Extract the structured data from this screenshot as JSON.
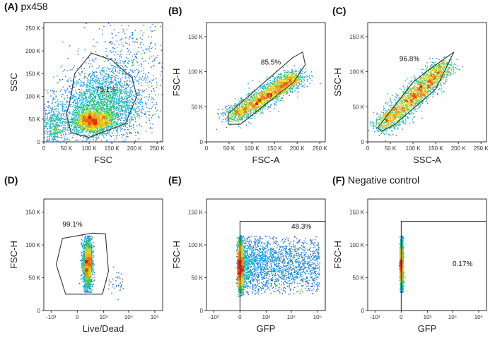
{
  "figure": {
    "panels": [
      {
        "id": "A",
        "letter": "(A)",
        "subtitle": "px458",
        "xlabel": "FSC",
        "ylabel": "SSC",
        "xscale": "linear",
        "yscale": "linear",
        "xlim": [
          0,
          262144
        ],
        "ylim": [
          0,
          262144
        ],
        "xticks": [
          {
            "v": 0,
            "t": "0"
          },
          {
            "v": 50000,
            "t": "50 K"
          },
          {
            "v": 100000,
            "t": "100 K"
          },
          {
            "v": 150000,
            "t": "150 K"
          },
          {
            "v": 200000,
            "t": "200 K"
          },
          {
            "v": 250000,
            "t": "250 K"
          }
        ],
        "yticks": [
          {
            "v": 0,
            "t": "0"
          },
          {
            "v": 50000,
            "t": "50 K"
          },
          {
            "v": 100000,
            "t": "100 K"
          },
          {
            "v": 150000,
            "t": "150 K"
          },
          {
            "v": 200000,
            "t": "200 K"
          },
          {
            "v": 250000,
            "t": "250 K"
          }
        ],
        "gate": {
          "type": "polygon",
          "vertices": [
            [
              50000,
              60000
            ],
            [
              60000,
              100000
            ],
            [
              68000,
              150000
            ],
            [
              105000,
              195000
            ],
            [
              150000,
              180000
            ],
            [
              195000,
              140000
            ],
            [
              205000,
              100000
            ],
            [
              180000,
              40000
            ],
            [
              100000,
              10000
            ],
            [
              60000,
              20000
            ]
          ]
        },
        "gate_label": "75.1%",
        "gate_label_pos": [
          115000,
          110000
        ],
        "populations": [
          {
            "cx": 105000,
            "cy": 45000,
            "sx": 24000,
            "sy": 14000,
            "n": 1700
          },
          {
            "cx": 130000,
            "cy": 85000,
            "sx": 45000,
            "sy": 38000,
            "n": 2400
          },
          {
            "cx": 22000,
            "cy": 35000,
            "sx": 14000,
            "sy": 28000,
            "n": 500
          },
          {
            "cx": 190000,
            "cy": 170000,
            "sx": 45000,
            "sy": 55000,
            "n": 500
          }
        ]
      },
      {
        "id": "B",
        "letter": "(B)",
        "subtitle": "",
        "xlabel": "FSC-A",
        "ylabel": "FSC-H",
        "xscale": "linear",
        "yscale": "linear",
        "xlim": [
          0,
          262144
        ],
        "ylim": [
          0,
          170000
        ],
        "xticks": [
          {
            "v": 0,
            "t": "0"
          },
          {
            "v": 50000,
            "t": "50 K"
          },
          {
            "v": 100000,
            "t": "100 K"
          },
          {
            "v": 150000,
            "t": "150 K"
          },
          {
            "v": 200000,
            "t": "200 K"
          },
          {
            "v": 250000,
            "t": "250 K"
          }
        ],
        "yticks": [
          {
            "v": 0,
            "t": "0"
          },
          {
            "v": 50000,
            "t": "50 K"
          },
          {
            "v": 100000,
            "t": "100 K"
          },
          {
            "v": 150000,
            "t": "150 K"
          }
        ],
        "gate": {
          "type": "polygon",
          "vertices": [
            [
              48000,
              40000
            ],
            [
              190000,
              120000
            ],
            [
              212000,
              128000
            ],
            [
              218000,
              110000
            ],
            [
              192000,
              85000
            ],
            [
              75000,
              25000
            ],
            [
              48000,
              25000
            ]
          ]
        },
        "gate_label": "85.5%",
        "gate_label_pos": [
          120000,
          110000
        ],
        "populations": [
          {
            "diag": true,
            "x0": 55000,
            "y0": 35000,
            "x1": 200000,
            "y1": 95000,
            "spread": 6000,
            "n": 2400
          }
        ]
      },
      {
        "id": "C",
        "letter": "(C)",
        "subtitle": "",
        "xlabel": "SSC-A",
        "ylabel": "SSC-H",
        "xscale": "linear",
        "yscale": "linear",
        "xlim": [
          0,
          262144
        ],
        "ylim": [
          0,
          170000
        ],
        "xticks": [
          {
            "v": 0,
            "t": "0"
          },
          {
            "v": 50000,
            "t": "50 K"
          },
          {
            "v": 100000,
            "t": "100 K"
          },
          {
            "v": 150000,
            "t": "150 K"
          },
          {
            "v": 200000,
            "t": "200 K"
          },
          {
            "v": 250000,
            "t": "250 K"
          }
        ],
        "yticks": [
          {
            "v": 0,
            "t": "0"
          },
          {
            "v": 50000,
            "t": "50 K"
          },
          {
            "v": 100000,
            "t": "100 K"
          },
          {
            "v": 150000,
            "t": "150 K"
          }
        ],
        "gate": {
          "type": "polygon",
          "vertices": [
            [
              22000,
              20000
            ],
            [
              100000,
              85000
            ],
            [
              140000,
              105000
            ],
            [
              190000,
              128000
            ],
            [
              150000,
              75000
            ],
            [
              60000,
              25000
            ],
            [
              30000,
              15000
            ]
          ]
        },
        "gate_label": "96.8%",
        "gate_label_pos": [
          70000,
          115000
        ],
        "populations": [
          {
            "diag": true,
            "x0": 30000,
            "y0": 20000,
            "x1": 170000,
            "y1": 110000,
            "spread": 6000,
            "n": 2300
          }
        ]
      },
      {
        "id": "D",
        "letter": "(D)",
        "subtitle": "",
        "xlabel": "Live/Dead",
        "ylabel": "FSC-H",
        "xscale": "biex",
        "yscale": "linear",
        "xlim": [
          -2000,
          200000
        ],
        "ylim": [
          0,
          170000
        ],
        "xticks": [
          {
            "v": -1000,
            "t": "-10³"
          },
          {
            "v": 0,
            "t": "0"
          },
          {
            "v": 1000,
            "t": "10³"
          },
          {
            "v": 10000,
            "t": "10⁴"
          },
          {
            "v": 100000,
            "t": "10⁵"
          }
        ],
        "yticks": [
          {
            "v": 0,
            "t": "0"
          },
          {
            "v": 50000,
            "t": "50 K"
          },
          {
            "v": 100000,
            "t": "100 K"
          },
          {
            "v": 150000,
            "t": "150 K"
          }
        ],
        "gate": {
          "type": "polygon",
          "vertices": [
            [
              -300,
              110000
            ],
            [
              300,
              118000
            ],
            [
              1200,
              117000
            ],
            [
              1600,
              60000
            ],
            [
              900,
              25000
            ],
            [
              -200,
              25000
            ],
            [
              -600,
              70000
            ]
          ]
        },
        "gate_label": "99.1%",
        "gate_label_pos": [
          -300,
          128000
        ],
        "populations": [
          {
            "biexcol": true,
            "cx": 150,
            "sxw": 0.02,
            "ylo": 28000,
            "yhi": 115000,
            "cy": 72000,
            "sy": 20000,
            "n": 2000
          },
          {
            "cx": 3000,
            "cy": 45000,
            "sx": 1200,
            "sy": 9000,
            "n": 40
          }
        ]
      },
      {
        "id": "E",
        "letter": "(E)",
        "subtitle": "",
        "xlabel": "GFP",
        "ylabel": "FSC-H",
        "xscale": "biex",
        "yscale": "linear",
        "xlim": [
          -2000,
          200000
        ],
        "ylim": [
          0,
          170000
        ],
        "xticks": [
          {
            "v": -1000,
            "t": "-10³"
          },
          {
            "v": 0,
            "t": "0"
          },
          {
            "v": 1000,
            "t": "10³"
          },
          {
            "v": 10000,
            "t": "10⁴"
          },
          {
            "v": 100000,
            "t": "10⁵"
          }
        ],
        "yticks": [
          {
            "v": 0,
            "t": "0"
          },
          {
            "v": 50000,
            "t": "50 K"
          },
          {
            "v": 100000,
            "t": "100 K"
          },
          {
            "v": 150000,
            "t": "150 K"
          }
        ],
        "gate": {
          "type": "rect",
          "x0": 0,
          "x1": 200000,
          "y0": 0,
          "y1": 136000
        },
        "gate_label": "48.3%",
        "gate_label_pos": [
          10000,
          125000
        ],
        "populations": [
          {
            "biexcol": true,
            "cx": 0,
            "sxw": 0.012,
            "ylo": 22000,
            "yhi": 115000,
            "cy": 68000,
            "sy": 22000,
            "n": 1500
          },
          {
            "spreadlog": true,
            "ylo": 25000,
            "yhi": 115000,
            "cy": 70000,
            "sy": 22000,
            "n": 2400
          }
        ]
      },
      {
        "id": "F",
        "letter": "(F)",
        "subtitle": "Negative control",
        "xlabel": "GFP",
        "ylabel": "FSC-H",
        "xscale": "biex",
        "yscale": "linear",
        "xlim": [
          -2000,
          200000
        ],
        "ylim": [
          0,
          170000
        ],
        "xticks": [
          {
            "v": -1000,
            "t": "-10³"
          },
          {
            "v": 0,
            "t": "0"
          },
          {
            "v": 1000,
            "t": "10³"
          },
          {
            "v": 10000,
            "t": "10⁴"
          },
          {
            "v": 100000,
            "t": "10⁵"
          }
        ],
        "yticks": [
          {
            "v": 0,
            "t": "0"
          },
          {
            "v": 50000,
            "t": "50 K"
          },
          {
            "v": 100000,
            "t": "100 K"
          },
          {
            "v": 150000,
            "t": "150 K"
          }
        ],
        "gate": {
          "type": "rect",
          "x0": 0,
          "x1": 200000,
          "y0": 0,
          "y1": 136000
        },
        "gate_label": "0.17%",
        "gate_label_pos": [
          10000,
          68000
        ],
        "populations": [
          {
            "biexcol": true,
            "cx": 0,
            "sxw": 0.007,
            "ylo": 28000,
            "yhi": 115000,
            "cy": 70000,
            "sy": 20000,
            "n": 1500
          }
        ]
      }
    ]
  }
}
